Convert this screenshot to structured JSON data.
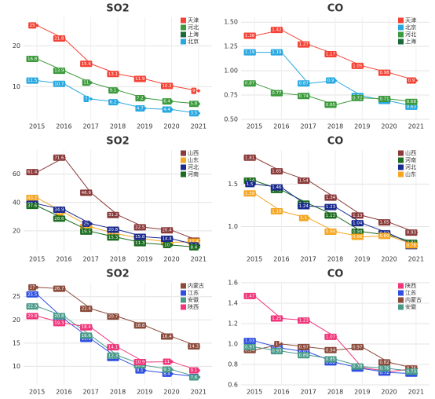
{
  "chart_data": [
    {
      "type": "line",
      "title": "SO2",
      "categories": [
        "2015",
        "2016",
        "2017",
        "2018",
        "2019",
        "2020",
        "2021"
      ],
      "ylim": [
        2,
        27
      ],
      "yticks": [
        10,
        20
      ],
      "grid": true,
      "legend": "top-right",
      "series": [
        {
          "name": "天津",
          "color": "#f44336",
          "values": [
            25,
            21.8,
            15.6,
            13.1,
            11.9,
            10.2,
            9
          ]
        },
        {
          "name": "河北",
          "color": "#3b9a3b",
          "values": [
            16.8,
            13.9,
            11,
            9.1,
            7.2,
            6.4,
            5.8
          ]
        },
        {
          "name": "上海",
          "color": "#1b6b3a",
          "values": [
            null,
            null,
            null,
            null,
            null,
            null,
            null
          ]
        },
        {
          "name": "北京",
          "color": "#29a8e0",
          "values": [
            11.5,
            10.7,
            7,
            6.2,
            4.7,
            4.4,
            3.5
          ]
        }
      ]
    },
    {
      "type": "line",
      "title": "CO",
      "categories": [
        "2015",
        "2016",
        "2017",
        "2018",
        "2019",
        "2020",
        "2021"
      ],
      "ylim": [
        0.5,
        1.55
      ],
      "yticks": [
        {
          "value": 0.5,
          "label": "0.50"
        },
        {
          "value": 0.75,
          "label": "0.75"
        },
        {
          "value": 1,
          "label": "1.00"
        },
        {
          "value": 1.25,
          "label": "1.25"
        },
        {
          "value": 1.5,
          "label": "1.50"
        }
      ],
      "grid": true,
      "legend": "top-right",
      "series": [
        {
          "name": "天津",
          "color": "#f44336",
          "values": [
            1.36,
            1.42,
            1.27,
            1.17,
            1.05,
            0.98,
            0.9
          ]
        },
        {
          "name": "北京",
          "color": "#29a8e0",
          "values": [
            1.19,
            1.19,
            0.87,
            0.9,
            0.74,
            0.69,
            0.63
          ]
        },
        {
          "name": "河北",
          "color": "#3b9a3b",
          "values": [
            0.87,
            0.77,
            0.74,
            0.65,
            0.72,
            0.71,
            0.68
          ]
        },
        {
          "name": "上海",
          "color": "#1b6b3a",
          "values": [
            null,
            null,
            null,
            null,
            null,
            null,
            null
          ]
        }
      ]
    },
    {
      "type": "line",
      "title": "SO2",
      "categories": [
        "2015",
        "2016",
        "2017",
        "2018",
        "2019",
        "2020",
        "2021"
      ],
      "ylim": [
        5,
        77
      ],
      "yticks": [
        20,
        40,
        60
      ],
      "grid": true,
      "legend": "top-right",
      "series": [
        {
          "name": "山西",
          "color": "#8b3a3a",
          "values": [
            61.4,
            71.6,
            46.9,
            31.2,
            22.5,
            20.4,
            13.1
          ]
        },
        {
          "name": "山东",
          "color": "#f5a623",
          "values": [
            43.2,
            33,
            22.7,
            17.8,
            14.2,
            11.9,
            12.4
          ]
        },
        {
          "name": "河北",
          "color": "#1a2a8e",
          "values": [
            39.1,
            34.9,
            25,
            20.8,
            15.8,
            14.4,
            9.8
          ]
        },
        {
          "name": "河南",
          "color": "#1b6b20",
          "values": [
            37.6,
            28.6,
            19.5,
            15.3,
            11.3,
            10,
            8.4
          ]
        }
      ]
    },
    {
      "type": "line",
      "title": "CO",
      "categories": [
        "2015",
        "2016",
        "2017",
        "2018",
        "2019",
        "2020",
        "2021"
      ],
      "ylim": [
        0.7,
        1.9
      ],
      "yticks": [
        {
          "value": 1,
          "label": "1.0"
        },
        1.5
      ],
      "grid": true,
      "legend": "top-right",
      "series": [
        {
          "name": "山西",
          "color": "#8b3a3a",
          "values": [
            1.81,
            1.65,
            1.54,
            1.34,
            1.13,
            1.05,
            0.93
          ]
        },
        {
          "name": "河南",
          "color": "#1b6b20",
          "values": [
            1.54,
            1.43,
            1.27,
            1.13,
            0.94,
            0.9,
            0.81
          ]
        },
        {
          "name": "河北",
          "color": "#1a2a8e",
          "values": [
            1.5,
            1.46,
            1.24,
            1.23,
            1.04,
            0.92,
            0.77
          ]
        },
        {
          "name": "山东",
          "color": "#f5a623",
          "values": [
            1.39,
            1.18,
            1.1,
            0.94,
            0.88,
            0.89,
            0.78
          ]
        }
      ]
    },
    {
      "type": "line",
      "title": "SO2",
      "categories": [
        "2015",
        "2016",
        "2017",
        "2018",
        "2019",
        "2020",
        "2021"
      ],
      "ylim": [
        6,
        28
      ],
      "yticks": [
        10,
        15,
        20,
        25
      ],
      "grid": true,
      "legend": "top-right",
      "series": [
        {
          "name": "内蒙古",
          "color": "#8b4a3a",
          "values": [
            27,
            26.7,
            22.4,
            20.7,
            18.8,
            16.4,
            14.3
          ]
        },
        {
          "name": "江苏",
          "color": "#2f4fe0",
          "values": [
            25.5,
            20.2,
            15.9,
            11.8,
            9.1,
            8.4,
            7.7
          ]
        },
        {
          "name": "安徽",
          "color": "#4a9a8a",
          "values": [
            22.9,
            20.8,
            16.6,
            12.3,
            10.2,
            9.3,
            7.6
          ]
        },
        {
          "name": "陕西",
          "color": "#f0357a",
          "values": [
            20.8,
            19.3,
            18.4,
            14.1,
            10.9,
            11,
            9.1
          ]
        }
      ]
    },
    {
      "type": "line",
      "title": "CO",
      "categories": [
        "2015",
        "2016",
        "2017",
        "2018",
        "2019",
        "2020",
        "2021"
      ],
      "ylim": [
        0.6,
        1.6
      ],
      "yticks": [
        0.6,
        0.8,
        {
          "value": 1,
          "label": "1.0"
        },
        1.2,
        1.4,
        1.6
      ],
      "grid": true,
      "legend": "top-right",
      "series": [
        {
          "name": "陕西",
          "color": "#f0357a",
          "values": [
            1.47,
            1.25,
            1.23,
            1.07,
            0.77,
            0.73,
            0.76
          ]
        },
        {
          "name": "江苏",
          "color": "#2f4fe0",
          "values": [
            1.03,
            0.96,
            0.92,
            0.82,
            0.76,
            0.72,
            0.71
          ]
        },
        {
          "name": "内蒙古",
          "color": "#8b4a3a",
          "values": [
            0.94,
            1,
            0.97,
            0.94,
            0.97,
            0.82,
            0.76
          ]
        },
        {
          "name": "安徽",
          "color": "#4a9a8a",
          "values": [
            0.97,
            0.93,
            0.89,
            0.85,
            0.78,
            0.76,
            0.73
          ]
        }
      ]
    }
  ]
}
